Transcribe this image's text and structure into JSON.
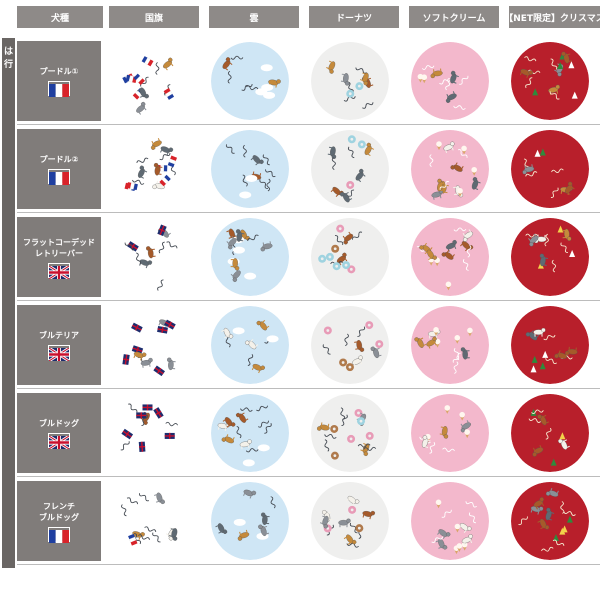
{
  "section_label": "は行",
  "headers": [
    "犬種",
    "国旗",
    "雲",
    "ドーナツ",
    "ソフトクリーム",
    "【NET限定】クリスマス"
  ],
  "themes": [
    {
      "name": "flag",
      "bg": "#ffffff"
    },
    {
      "name": "cloud",
      "bg": "#cfe6f5"
    },
    {
      "name": "donut",
      "bg": "#efefee"
    },
    {
      "name": "softcream",
      "bg": "#f3b8cc"
    },
    {
      "name": "christmas",
      "bg": "#b81f2b"
    }
  ],
  "rows": [
    {
      "breed": "プードル①",
      "flag": "france"
    },
    {
      "breed": "プードル②",
      "flag": "france"
    },
    {
      "breed": "フラットコーデッド\nレトリーバー",
      "flag": "uk"
    },
    {
      "breed": "ブルテリア",
      "flag": "uk"
    },
    {
      "breed": "ブルドッグ",
      "flag": "uk"
    },
    {
      "breed": "フレンチ\nブルドッグ",
      "flag": "france"
    }
  ],
  "colors": {
    "header_bg": "#8e8a88",
    "breed_bg": "#807c7a",
    "side_bar": "#6a6664",
    "france_blue": "#1f3fa0",
    "france_red": "#d8232a",
    "uk_blue": "#1d2d6e",
    "uk_red": "#c8102e"
  }
}
